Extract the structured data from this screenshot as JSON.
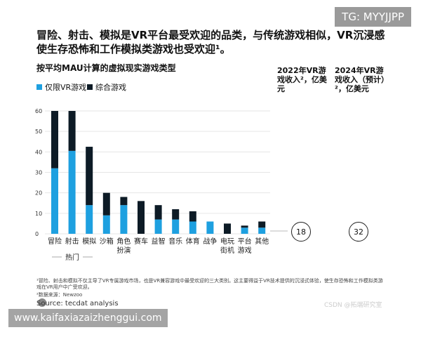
{
  "title": "冒险、射击、模拟是VR平台最受欢迎的品类，与传统游戏相似，VR沉浸感使生存恐怖和工作模拟类游戏也受欢迎¹。",
  "watermark": "TG: MYYJJPP",
  "url_banner": "www.kaifaxiazaizhenggui.com",
  "columns": {
    "c2022": "2022年VR游戏收入²，亿美元",
    "c2024": "2024年VR游戏收入（预计）²，亿美元",
    "v2022": "18",
    "v2024": "32"
  },
  "footnote1": "¹冒险、射击和模拟不仅主导了VR专属游戏市场，也是VR兼容游戏中最受欢迎的三大类别。这主要得益于VR技术提供的沉浸式体验，使生存恐怖和工作模拟类游戏在VR用户中广受欢迎。",
  "footnote2": "²数据来源：Newzoo",
  "source": "Source: tecdat analysis",
  "csdn": "CSDN @拓端研究室",
  "chart_data": {
    "type": "bar",
    "stacked": true,
    "title": "按平均MAU计算的虚拟现实游戏类型",
    "categories": [
      "冒险",
      "射击",
      "模拟",
      "沙箱",
      "角色扮演",
      "赛车",
      "益智",
      "音乐",
      "体育",
      "战争",
      "电玩街机",
      "平台游戏",
      "其他"
    ],
    "series": [
      {
        "name": "仅限VR游戏",
        "color": "#1ea0e0",
        "values": [
          32,
          40.5,
          14,
          9,
          14,
          0,
          7,
          7,
          6,
          6,
          0,
          3,
          3
        ]
      },
      {
        "name": "综合游戏",
        "color": "#0d1b26",
        "values": [
          28,
          19.5,
          28.5,
          11,
          4,
          16,
          7,
          5,
          5,
          0,
          5,
          1,
          3
        ]
      }
    ],
    "group_label": "热门",
    "yticks": [
      0,
      10,
      20,
      30,
      40,
      50,
      60
    ],
    "ylim": [
      0,
      60
    ],
    "grid": true,
    "legend": "top-left"
  }
}
